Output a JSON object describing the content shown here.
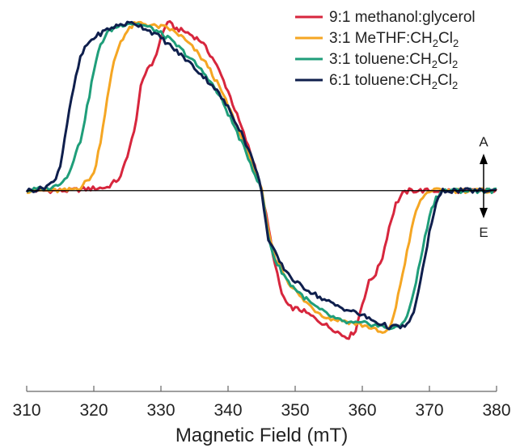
{
  "chart_data": {
    "type": "line",
    "title": "",
    "xlabel": "Magnetic Field (mT)",
    "ylabel": "",
    "xlim": [
      310,
      380
    ],
    "ylim": [
      -1.15,
      1.05
    ],
    "xticks": [
      310,
      320,
      330,
      340,
      350,
      360,
      370,
      380
    ],
    "legend_position": "top-right",
    "annotations": {
      "up": "A",
      "down": "E"
    },
    "series": [
      {
        "name_parts": [
          "9:1 methanol:glycerol"
        ],
        "color": "#d7263d",
        "points": [
          [
            310,
            0.0
          ],
          [
            316,
            0.0
          ],
          [
            322,
            0.02
          ],
          [
            324,
            0.08
          ],
          [
            326,
            0.35
          ],
          [
            327,
            0.62
          ],
          [
            328,
            0.74
          ],
          [
            329,
            0.78
          ],
          [
            330,
            0.92
          ],
          [
            331,
            1.02
          ],
          [
            332,
            0.98
          ],
          [
            334,
            0.95
          ],
          [
            336,
            0.9
          ],
          [
            338,
            0.78
          ],
          [
            340,
            0.6
          ],
          [
            342,
            0.38
          ],
          [
            344,
            0.15
          ],
          [
            345,
            0.0
          ],
          [
            346,
            -0.22
          ],
          [
            347,
            -0.45
          ],
          [
            348,
            -0.62
          ],
          [
            349,
            -0.7
          ],
          [
            351,
            -0.72
          ],
          [
            353,
            -0.77
          ],
          [
            355,
            -0.82
          ],
          [
            356,
            -0.84
          ],
          [
            357,
            -0.87
          ],
          [
            358,
            -0.88
          ],
          [
            359,
            -0.84
          ],
          [
            360,
            -0.68
          ],
          [
            361,
            -0.55
          ],
          [
            362,
            -0.5
          ],
          [
            363,
            -0.4
          ],
          [
            364,
            -0.22
          ],
          [
            365,
            -0.08
          ],
          [
            366,
            -0.02
          ],
          [
            367,
            0.0
          ],
          [
            370,
            0.0
          ],
          [
            375,
            0.0
          ],
          [
            380,
            0.0
          ]
        ]
      },
      {
        "name_parts": [
          "3:1 MeTHF:CH",
          "2",
          "Cl",
          "2"
        ],
        "color": "#f5a623",
        "points": [
          [
            310,
            0.0
          ],
          [
            316,
            0.0
          ],
          [
            318,
            0.02
          ],
          [
            320,
            0.1
          ],
          [
            321,
            0.3
          ],
          [
            322,
            0.55
          ],
          [
            323,
            0.78
          ],
          [
            324,
            0.9
          ],
          [
            325,
            0.96
          ],
          [
            326,
            1.0
          ],
          [
            327,
            1.01
          ],
          [
            329,
            0.99
          ],
          [
            331,
            0.98
          ],
          [
            333,
            0.93
          ],
          [
            335,
            0.85
          ],
          [
            337,
            0.75
          ],
          [
            339,
            0.6
          ],
          [
            341,
            0.42
          ],
          [
            343,
            0.22
          ],
          [
            345,
            0.0
          ],
          [
            346,
            -0.25
          ],
          [
            347,
            -0.4
          ],
          [
            349,
            -0.55
          ],
          [
            351,
            -0.65
          ],
          [
            353,
            -0.72
          ],
          [
            355,
            -0.77
          ],
          [
            357,
            -0.78
          ],
          [
            359,
            -0.8
          ],
          [
            361,
            -0.82
          ],
          [
            363,
            -0.86
          ],
          [
            364,
            -0.84
          ],
          [
            365,
            -0.7
          ],
          [
            366,
            -0.5
          ],
          [
            367,
            -0.3
          ],
          [
            368,
            -0.12
          ],
          [
            369,
            -0.04
          ],
          [
            370,
            0.0
          ],
          [
            375,
            0.0
          ],
          [
            380,
            0.0
          ]
        ]
      },
      {
        "name_parts": [
          "3:1 toluene:CH",
          "2",
          "Cl",
          "2"
        ],
        "color": "#1f9e7a",
        "points": [
          [
            310,
            0.0
          ],
          [
            314,
            0.02
          ],
          [
            316,
            0.08
          ],
          [
            318,
            0.3
          ],
          [
            319,
            0.5
          ],
          [
            320,
            0.72
          ],
          [
            321,
            0.88
          ],
          [
            322,
            0.95
          ],
          [
            323,
            0.98
          ],
          [
            325,
            1.01
          ],
          [
            327,
            1.0
          ],
          [
            329,
            0.97
          ],
          [
            331,
            0.92
          ],
          [
            333,
            0.85
          ],
          [
            335,
            0.77
          ],
          [
            337,
            0.68
          ],
          [
            339,
            0.55
          ],
          [
            341,
            0.38
          ],
          [
            343,
            0.2
          ],
          [
            345,
            0.0
          ],
          [
            346,
            -0.28
          ],
          [
            347,
            -0.42
          ],
          [
            349,
            -0.55
          ],
          [
            351,
            -0.63
          ],
          [
            353,
            -0.7
          ],
          [
            355,
            -0.75
          ],
          [
            357,
            -0.79
          ],
          [
            359,
            -0.8
          ],
          [
            361,
            -0.8
          ],
          [
            363,
            -0.82
          ],
          [
            365,
            -0.83
          ],
          [
            366,
            -0.8
          ],
          [
            367,
            -0.72
          ],
          [
            368,
            -0.55
          ],
          [
            369,
            -0.35
          ],
          [
            370,
            -0.15
          ],
          [
            371,
            -0.04
          ],
          [
            372,
            0.0
          ],
          [
            375,
            0.0
          ],
          [
            380,
            0.0
          ]
        ]
      },
      {
        "name_parts": [
          "6:1 toluene:CH",
          "2",
          "Cl",
          "2"
        ],
        "color": "#0f1f4d",
        "points": [
          [
            310,
            0.0
          ],
          [
            312,
            0.01
          ],
          [
            314,
            0.05
          ],
          [
            315,
            0.15
          ],
          [
            316,
            0.4
          ],
          [
            317,
            0.62
          ],
          [
            318,
            0.8
          ],
          [
            319,
            0.88
          ],
          [
            320,
            0.92
          ],
          [
            322,
            0.97
          ],
          [
            324,
            1.0
          ],
          [
            326,
            1.01
          ],
          [
            328,
            0.97
          ],
          [
            330,
            0.92
          ],
          [
            332,
            0.85
          ],
          [
            334,
            0.78
          ],
          [
            336,
            0.7
          ],
          [
            338,
            0.62
          ],
          [
            340,
            0.5
          ],
          [
            342,
            0.35
          ],
          [
            344,
            0.15
          ],
          [
            345,
            0.0
          ],
          [
            346,
            -0.3
          ],
          [
            348,
            -0.45
          ],
          [
            350,
            -0.55
          ],
          [
            352,
            -0.6
          ],
          [
            354,
            -0.65
          ],
          [
            356,
            -0.69
          ],
          [
            358,
            -0.72
          ],
          [
            360,
            -0.75
          ],
          [
            362,
            -0.79
          ],
          [
            364,
            -0.82
          ],
          [
            366,
            -0.82
          ],
          [
            367,
            -0.8
          ],
          [
            368,
            -0.68
          ],
          [
            369,
            -0.48
          ],
          [
            370,
            -0.25
          ],
          [
            371,
            -0.08
          ],
          [
            372,
            0.0
          ],
          [
            375,
            0.0
          ],
          [
            380,
            0.0
          ]
        ]
      }
    ]
  }
}
